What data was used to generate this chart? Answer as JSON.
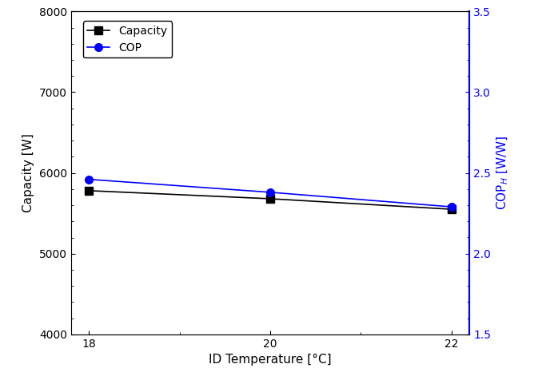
{
  "x": [
    18,
    20,
    22
  ],
  "capacity": [
    5780,
    5680,
    5550
  ],
  "cop": [
    2.46,
    2.38,
    2.29
  ],
  "capacity_color": "black",
  "cop_color": "blue",
  "ylabel_left": "Capacity [W]",
  "ylabel_right": "COP$_H$ [W/W]",
  "xlabel": "ID Temperature [°C]",
  "ylim_left": [
    4000,
    8000
  ],
  "ylim_right": [
    1.5,
    3.5
  ],
  "yticks_left": [
    4000,
    5000,
    6000,
    7000,
    8000
  ],
  "yticks_right": [
    1.5,
    2.0,
    2.5,
    3.0,
    3.5
  ],
  "xticks": [
    18,
    20,
    22
  ],
  "legend_capacity": "Capacity",
  "legend_cop": "COP",
  "figure_width": 6.83,
  "figure_height": 4.76,
  "dpi": 100,
  "bg_color": "white",
  "linewidth": 1.2,
  "marker_size": 7
}
